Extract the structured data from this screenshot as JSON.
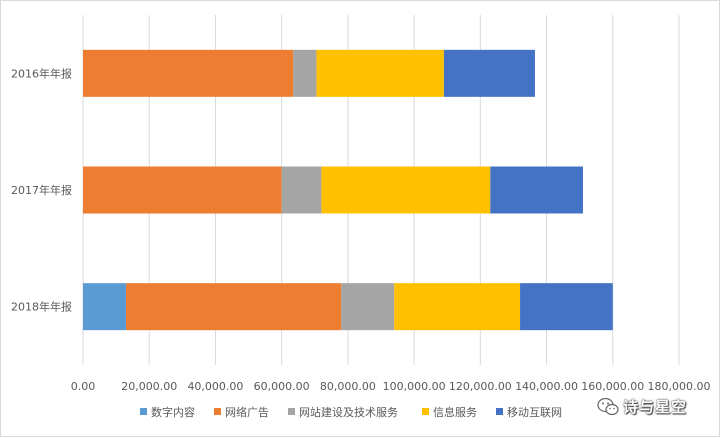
{
  "chart_data": {
    "type": "bar",
    "orientation": "horizontal",
    "stacked": true,
    "categories": [
      "2016年年报",
      "2017年年报",
      "2018年年报"
    ],
    "series": [
      {
        "name": "数字内容",
        "color": "#5b9bd5",
        "values": [
          0,
          0,
          13000
        ]
      },
      {
        "name": "网络广告",
        "color": "#ed7d31",
        "values": [
          63500,
          60000,
          65000
        ]
      },
      {
        "name": "网站建设及技术服务",
        "color": "#a5a5a5",
        "values": [
          7000,
          12000,
          16000
        ]
      },
      {
        "name": "信息服务",
        "color": "#ffc000",
        "values": [
          38500,
          51000,
          38000
        ]
      },
      {
        "name": "移动互联网",
        "color": "#4472c4",
        "values": [
          27500,
          28000,
          28000
        ]
      }
    ],
    "x_ticks": [
      "0.00",
      "20,000.00",
      "40,000.00",
      "60,000.00",
      "80,000.00",
      "100,000.00",
      "120,000.00",
      "140,000.00",
      "160,000.00",
      "180,000.00"
    ],
    "xlim": [
      0,
      180000
    ],
    "grid": true,
    "legend_position": "bottom"
  },
  "watermark": {
    "text": "诗与星空",
    "icon": "wechat-icon"
  }
}
